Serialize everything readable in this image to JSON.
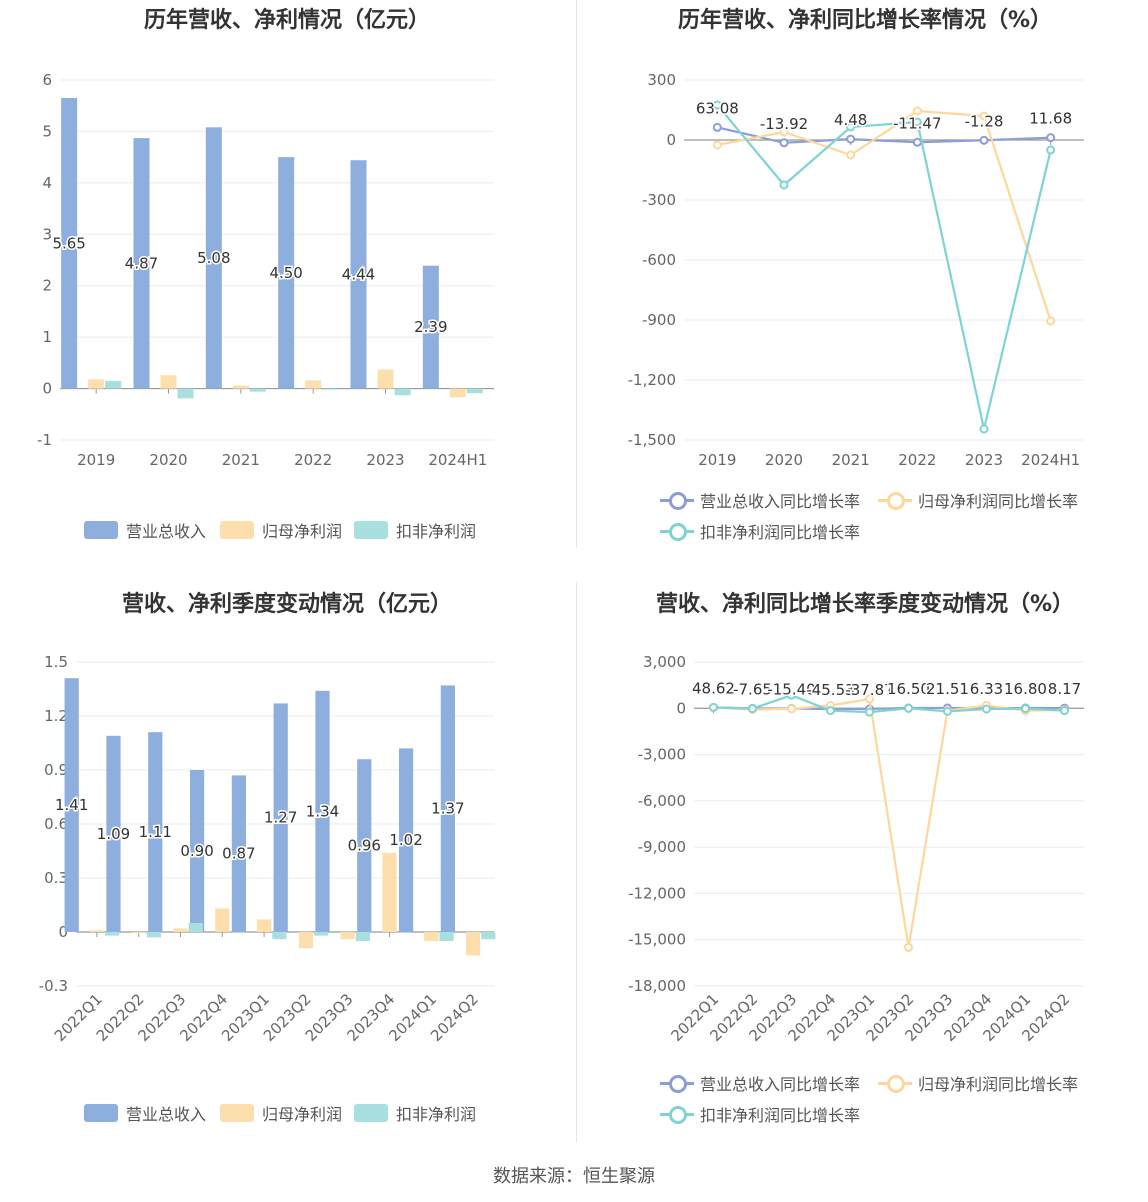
{
  "source_text": "数据来源：恒生聚源",
  "chart_data": [
    {
      "type": "bar",
      "title": "历年营收、净利情况（亿元）",
      "categories": [
        "2019",
        "2020",
        "2021",
        "2022",
        "2023",
        "2024H1"
      ],
      "ylim": [
        -1,
        6
      ],
      "yticks": [
        "6",
        "5",
        "4",
        "3",
        "2",
        "1",
        "0",
        "-1"
      ],
      "ytick_values": [
        6,
        5,
        4,
        3,
        2,
        1,
        0,
        -1
      ],
      "series": [
        {
          "name": "营业总收入",
          "color": "#8eaedd",
          "values": [
            5.65,
            4.87,
            5.08,
            4.5,
            4.44,
            2.39
          ],
          "labels": [
            "5.65",
            "4.87",
            "5.08",
            "4.50",
            "4.44",
            "2.39"
          ]
        },
        {
          "name": "归母净利润",
          "color": "#fddfae",
          "values": [
            0.18,
            0.26,
            0.06,
            0.16,
            0.37,
            -0.17
          ]
        },
        {
          "name": "扣非净利润",
          "color": "#a8e0e0",
          "values": [
            0.15,
            -0.19,
            -0.06,
            -0.01,
            -0.13,
            -0.09
          ]
        }
      ]
    },
    {
      "type": "line",
      "title": "历年营收、净利同比增长率情况（%）",
      "categories": [
        "2019",
        "2020",
        "2021",
        "2022",
        "2023",
        "2024H1"
      ],
      "ylim": [
        -1500,
        300
      ],
      "yticks": [
        "300",
        "0",
        "-300",
        "-600",
        "-900",
        "-1,200",
        "-1,500"
      ],
      "ytick_values": [
        300,
        0,
        -300,
        -600,
        -900,
        -1200,
        -1500
      ],
      "series": [
        {
          "name": "营业总收入同比增长率",
          "color": "#8b9ed6",
          "values": [
            63.08,
            -13.92,
            4.48,
            -11.47,
            -1.28,
            11.68
          ],
          "labels": [
            "63.08",
            "-13.92",
            "4.48",
            "-11.47",
            "-1.28",
            "11.68"
          ]
        },
        {
          "name": "归母净利润同比增长率",
          "color": "#fdd79b",
          "values": [
            -25,
            40,
            -75,
            145,
            120,
            -905
          ]
        },
        {
          "name": "扣非净利润同比增长率",
          "color": "#7fd3d3",
          "values": [
            175,
            -225,
            65,
            90,
            -1445,
            -50
          ]
        }
      ]
    },
    {
      "type": "bar",
      "title": "营收、净利季度变动情况（亿元）",
      "categories": [
        "2022Q1",
        "2022Q2",
        "2022Q3",
        "2022Q4",
        "2023Q1",
        "2023Q2",
        "2023Q3",
        "2023Q4",
        "2024Q1",
        "2024Q2"
      ],
      "ylim": [
        -0.3,
        1.5
      ],
      "yticks": [
        "1.5",
        "1.2",
        "0.9",
        "0.6",
        "0.3",
        "0",
        "-0.3"
      ],
      "ytick_values": [
        1.5,
        1.2,
        0.9,
        0.6,
        0.3,
        0,
        -0.3
      ],
      "series": [
        {
          "name": "营业总收入",
          "color": "#8eaedd",
          "values": [
            1.41,
            1.09,
            1.11,
            0.9,
            0.87,
            1.27,
            1.34,
            0.96,
            1.02,
            1.37
          ],
          "labels": [
            "1.41",
            "1.09",
            "1.11",
            "0.90",
            "0.87",
            "1.27",
            "1.34",
            "0.96",
            "1.02",
            "1.37"
          ]
        },
        {
          "name": "归母净利润",
          "color": "#fddfae",
          "values": [
            0.01,
            0.0,
            0.02,
            0.13,
            0.07,
            -0.09,
            -0.04,
            0.44,
            -0.05,
            -0.13
          ]
        },
        {
          "name": "扣非净利润",
          "color": "#a8e0e0",
          "values": [
            -0.02,
            -0.03,
            0.05,
            0.0,
            -0.04,
            -0.02,
            -0.05,
            0.0,
            -0.05,
            -0.04
          ]
        }
      ]
    },
    {
      "type": "line",
      "title": "营收、净利同比增长率季度变动情况（%）",
      "categories": [
        "2022Q1",
        "2022Q2",
        "2022Q3",
        "2022Q4",
        "2023Q1",
        "2023Q2",
        "2023Q3",
        "2023Q4",
        "2024Q1",
        "2024Q2"
      ],
      "ylim": [
        -18000,
        3000
      ],
      "yticks": [
        "3,000",
        "0",
        "-3,000",
        "-6,000",
        "-9,000",
        "-12,000",
        "-15,000",
        "-18,000"
      ],
      "ytick_values": [
        3000,
        0,
        -3000,
        -6000,
        -9000,
        -12000,
        -15000,
        -18000
      ],
      "series": [
        {
          "name": "营业总收入同比增长率",
          "color": "#8b9ed6",
          "values": [
            48.62,
            -7.65,
            -15.4,
            -45.53,
            -37.87,
            16.5,
            21.51,
            6.33,
            16.8,
            8.17
          ],
          "labels": [
            "48.62",
            "-7.65",
            "-15.40",
            "-45.53",
            "-37.87",
            "16.50",
            "21.51",
            "6.33",
            "16.80",
            "8.17"
          ]
        },
        {
          "name": "归母净利润同比增长率",
          "color": "#fdd79b",
          "values": [
            50,
            -80,
            -40,
            180,
            600,
            -15500,
            -150,
            180,
            -150,
            -100
          ]
        },
        {
          "name": "扣非净利润同比增长率",
          "color": "#7fd3d3",
          "values": [
            60,
            -20,
            850,
            -150,
            -250,
            0,
            -200,
            -50,
            -20,
            -150
          ]
        }
      ]
    }
  ]
}
